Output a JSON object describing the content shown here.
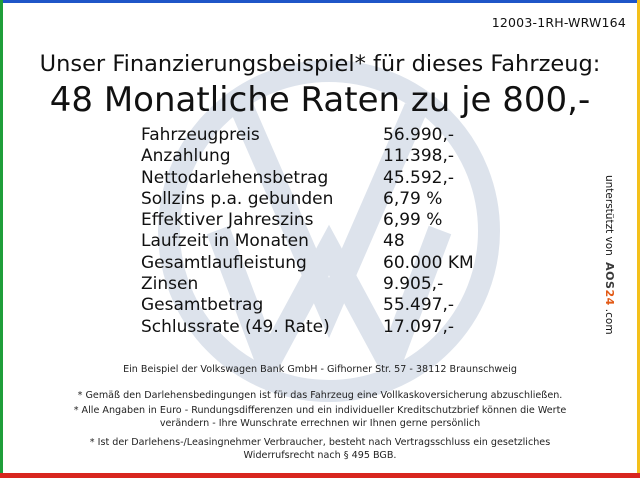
{
  "colors": {
    "bar_blue": "#1f56c8",
    "bar_green": "#1f9e3a",
    "bar_yellow": "#f4c01a",
    "bar_red": "#d8261f",
    "watermark": "#dde3ec"
  },
  "watermark_icon": "vw-logo-icon",
  "ref_code": "12003-1RH-WRW164",
  "headline": {
    "line1": "Unser Finanzierungsbeispiel* für dieses Fahrzeug:",
    "line2": "48 Monatliche Raten zu je 800,-"
  },
  "financing_rows": [
    {
      "label": "Fahrzeugpreis",
      "value": "56.990,-"
    },
    {
      "label": "Anzahlung",
      "value": "11.398,-"
    },
    {
      "label": "Nettodarlehensbetrag",
      "value": "45.592,-"
    },
    {
      "label": "Sollzins p.a. gebunden",
      "value": "6,79 %"
    },
    {
      "label": "Effektiver Jahreszins",
      "value": "6,99 %"
    },
    {
      "label": "Laufzeit in Monaten",
      "value": "48"
    },
    {
      "label": "Gesamtlaufleistung",
      "value": "60.000 KM"
    },
    {
      "label": "Zinsen",
      "value": "9.905,-"
    },
    {
      "label": "Gesamtbetrag",
      "value": "55.497,-"
    },
    {
      "label": "Schlussrate (49. Rate)",
      "value": "17.097,-"
    }
  ],
  "side_credit": {
    "prefix": "unterstützt von",
    "brand_part1": "AOS",
    "brand_part2": "24",
    "suffix": ".com"
  },
  "footnotes": {
    "bank": "Ein Beispiel der Volkswagen Bank GmbH - Gifhorner Str. 57 - 38112 Braunschweig",
    "note1": "* Gemäß den Darlehensbedingungen ist für das Fahrzeug eine Vollkaskoversicherung abzuschließen.",
    "note2_line1": "* Alle Angaben in Euro - Rundungsdifferenzen und ein individueller Kreditschutzbrief können die Werte",
    "note2_line2": "verändern - Ihre Wunschrate errechnen wir Ihnen gerne persönlich",
    "note3_line1": "* Ist der Darlehens-/Leasingnehmer Verbraucher, besteht nach Vertragsschluss ein gesetzliches",
    "note3_line2": "Widerrufsrecht nach § 495 BGB."
  }
}
